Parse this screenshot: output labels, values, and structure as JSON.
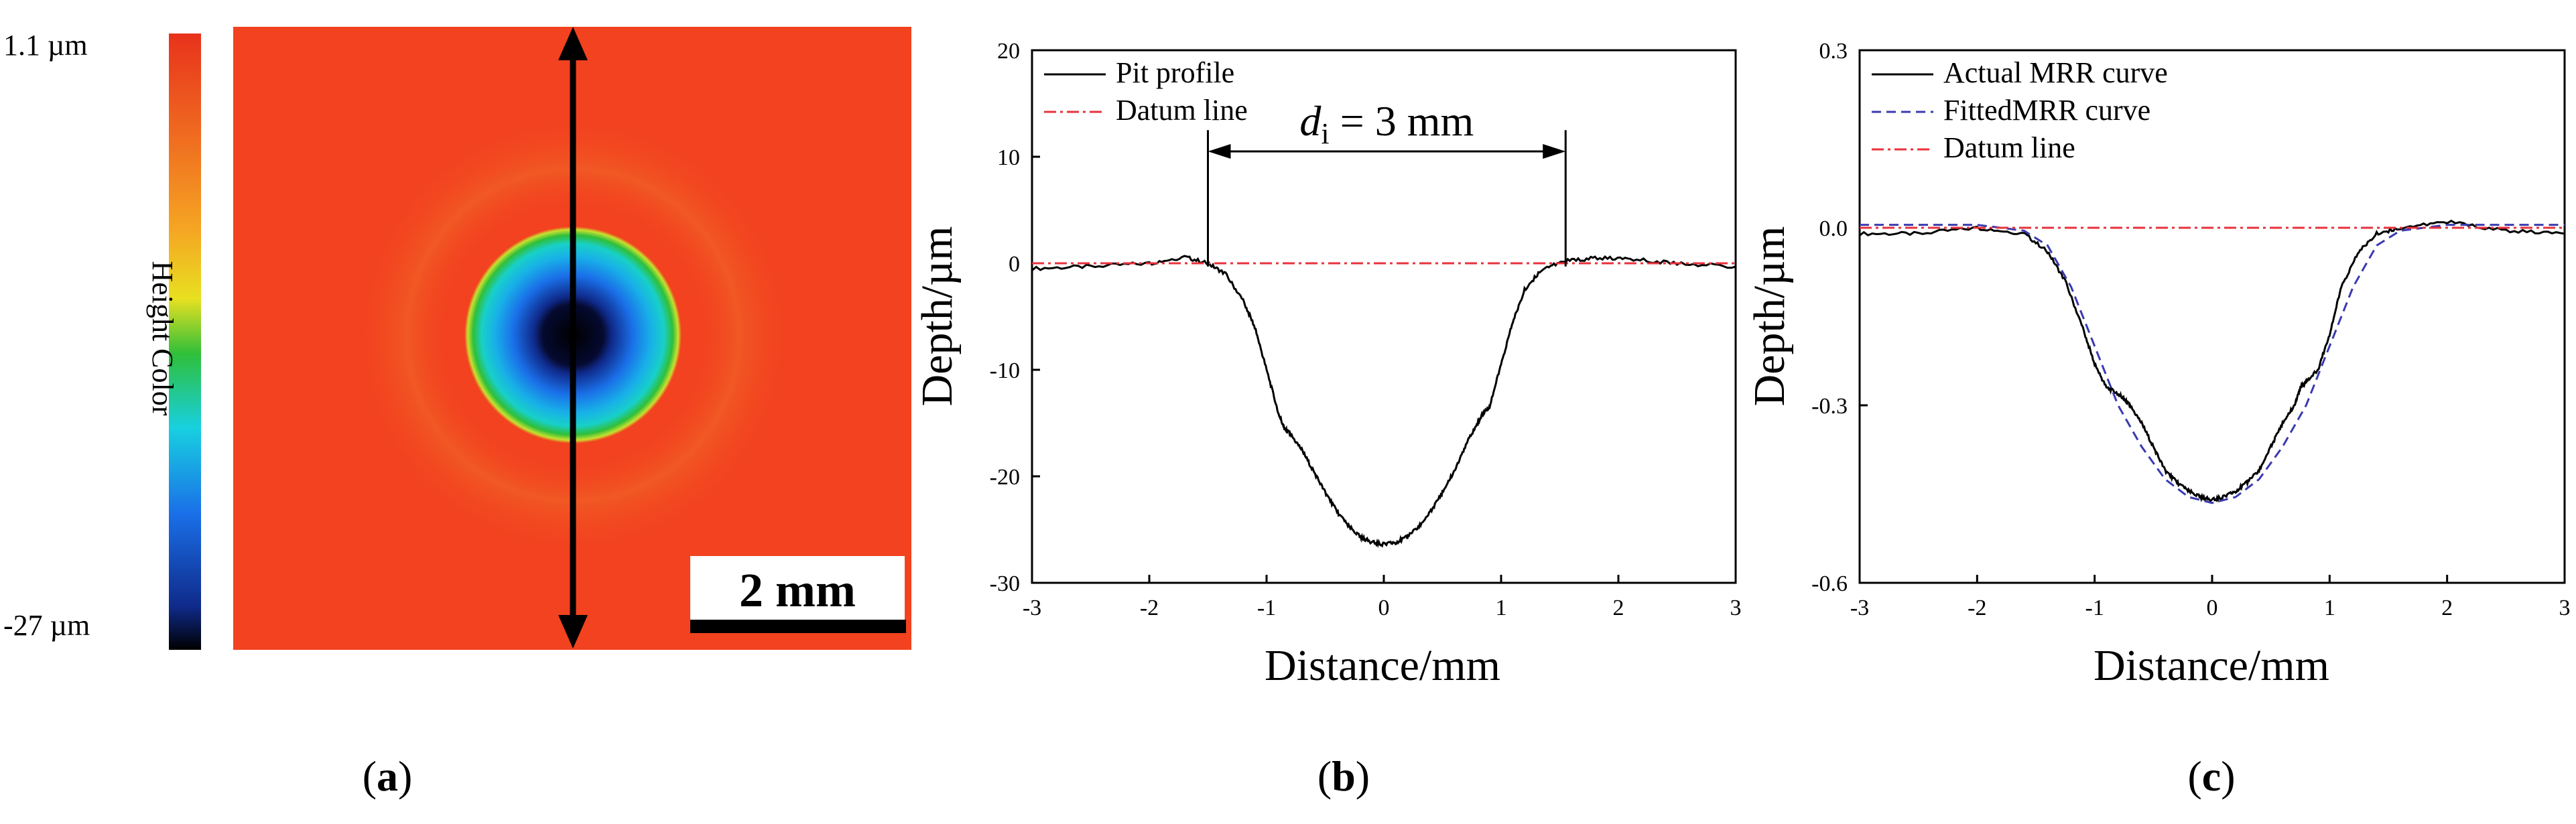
{
  "figure": {
    "panels": [
      {
        "label": "(a)",
        "letter": "a"
      },
      {
        "label": "(b)",
        "letter": "b"
      },
      {
        "label": "(c)",
        "letter": "c"
      }
    ]
  },
  "height_map": {
    "colorbar_top_label": "1.1 µm",
    "colorbar_bottom_label": "-27 µm",
    "colorbar_title": "Height Color",
    "scale_bar_label": "2 mm",
    "colorbar_stops": [
      "#e8321c",
      "#f0501e",
      "#f5a623",
      "#e8e020",
      "#2fbf3a",
      "#18d0e0",
      "#1a6fe8",
      "#0f2a8a",
      "#000000"
    ],
    "background_color": "#f2421f"
  },
  "chart_data": [
    {
      "type": "line",
      "panel": "b",
      "xlabel": "Distance/mm",
      "ylabel": "Depth/µm",
      "xlim": [
        -3,
        3
      ],
      "ylim": [
        -30,
        20
      ],
      "xticks": [
        -3,
        -2,
        -1,
        0,
        1,
        2,
        3
      ],
      "yticks": [
        -30,
        -20,
        -10,
        0,
        10,
        20
      ],
      "legend": "top-left",
      "annotation": {
        "text_italic": "d",
        "subscript": "i",
        "text_rest": " = 3 mm",
        "x_from": -1.5,
        "x_to": 1.55
      },
      "series": [
        {
          "name": "Pit profile",
          "color": "#000000",
          "style": "solid",
          "x": [
            -3,
            -2.5,
            -2,
            -1.7,
            -1.5,
            -1.35,
            -1.2,
            -1.1,
            -1.0,
            -0.9,
            -0.85,
            -0.8,
            -0.7,
            -0.6,
            -0.5,
            -0.4,
            -0.3,
            -0.2,
            -0.1,
            0,
            0.1,
            0.2,
            0.3,
            0.4,
            0.5,
            0.6,
            0.7,
            0.8,
            0.85,
            0.9,
            1.0,
            1.1,
            1.2,
            1.35,
            1.55,
            1.8,
            2.1,
            2.5,
            3
          ],
          "y": [
            -0.5,
            -0.3,
            0,
            0.6,
            0,
            -1,
            -3.5,
            -6,
            -10,
            -14,
            -15.5,
            -16,
            -17.5,
            -19.5,
            -21.5,
            -23.3,
            -24.7,
            -25.7,
            -26.2,
            -26.4,
            -26.2,
            -25.7,
            -24.7,
            -23.3,
            -21.5,
            -19.5,
            -17,
            -15,
            -14,
            -13.5,
            -9.5,
            -5.5,
            -2.5,
            -0.5,
            0.2,
            0.5,
            0.4,
            0,
            -0.3
          ]
        },
        {
          "name": "Datum line",
          "color": "#e8323c",
          "style": "dashdot",
          "x": [
            -3,
            3
          ],
          "y": [
            0,
            0
          ]
        }
      ]
    },
    {
      "type": "line",
      "panel": "c",
      "xlabel": "Distance/mm",
      "ylabel": "Depth/µm",
      "xlim": [
        -3,
        3
      ],
      "ylim": [
        -0.6,
        0.3
      ],
      "xticks": [
        -3,
        -2,
        -1,
        0,
        1,
        2,
        3
      ],
      "yticks": [
        -0.6,
        -0.3,
        0.0,
        0.3
      ],
      "ytick_labels": [
        "-0.6",
        "-0.3",
        "0.0",
        "0.3"
      ],
      "legend": "top-left",
      "series": [
        {
          "name": "Actual MRR curve",
          "color": "#000000",
          "style": "solid",
          "x": [
            -3,
            -2.5,
            -2,
            -1.6,
            -1.4,
            -1.25,
            -1.1,
            -1.0,
            -0.9,
            -0.8,
            -0.75,
            -0.7,
            -0.6,
            -0.5,
            -0.4,
            -0.3,
            -0.2,
            -0.1,
            0,
            0.1,
            0.2,
            0.3,
            0.4,
            0.5,
            0.6,
            0.7,
            0.75,
            0.8,
            0.9,
            1.0,
            1.1,
            1.25,
            1.4,
            1.6,
            2,
            2.5,
            3
          ],
          "y": [
            -0.01,
            -0.01,
            0.0,
            -0.01,
            -0.04,
            -0.09,
            -0.17,
            -0.23,
            -0.27,
            -0.28,
            -0.29,
            -0.3,
            -0.33,
            -0.37,
            -0.41,
            -0.43,
            -0.445,
            -0.455,
            -0.46,
            -0.455,
            -0.445,
            -0.43,
            -0.41,
            -0.37,
            -0.33,
            -0.3,
            -0.27,
            -0.26,
            -0.24,
            -0.18,
            -0.1,
            -0.04,
            -0.01,
            0.0,
            0.01,
            -0.005,
            -0.01
          ]
        },
        {
          "name": "FittedMRR curve",
          "color": "#3a3ab0",
          "style": "dashed",
          "x": [
            -3,
            -2,
            -1.6,
            -1.4,
            -1.2,
            -1.0,
            -0.8,
            -0.6,
            -0.4,
            -0.2,
            0,
            0.2,
            0.4,
            0.6,
            0.8,
            1.0,
            1.2,
            1.4,
            1.6,
            2,
            3
          ],
          "y": [
            0.005,
            0.005,
            -0.005,
            -0.03,
            -0.1,
            -0.2,
            -0.3,
            -0.37,
            -0.425,
            -0.455,
            -0.465,
            -0.455,
            -0.425,
            -0.37,
            -0.3,
            -0.2,
            -0.1,
            -0.03,
            -0.005,
            0.005,
            0.005
          ]
        },
        {
          "name": "Datum line",
          "color": "#e8323c",
          "style": "dashdot",
          "x": [
            -3,
            3
          ],
          "y": [
            0,
            0
          ]
        }
      ]
    }
  ]
}
